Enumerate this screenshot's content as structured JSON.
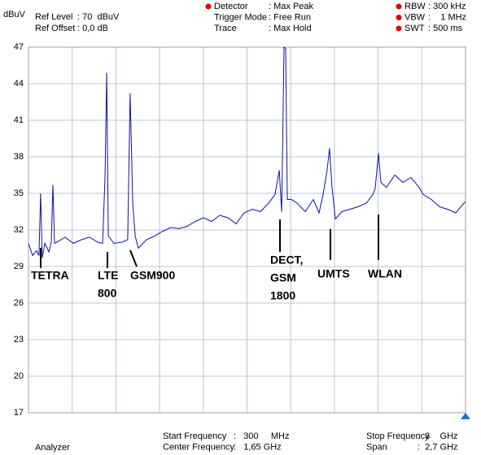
{
  "header": {
    "left": [
      {
        "label": "Ref Level",
        "value": ": 70  dBuV"
      },
      {
        "label": "Ref Offset",
        "value": ": 0,0 dB"
      }
    ],
    "middle": [
      {
        "label": "Detector",
        "value": ": Max Peak"
      },
      {
        "label": "Trigger Mode",
        "value": ": Free Run"
      },
      {
        "label": "Trace",
        "value": ": Max Hold"
      }
    ],
    "right": [
      {
        "label": "RBW",
        "value": ": 300 kHz"
      },
      {
        "label": "VBW",
        "value": ":    1 MHz"
      },
      {
        "label": "SWT",
        "value": ": 500 ms"
      }
    ]
  },
  "footer": {
    "left": [
      {
        "label": "Start Frequency",
        "value": ":   300     MHz"
      },
      {
        "label": "Center Frequency",
        "value": ":   1,65 GHz"
      }
    ],
    "right": [
      {
        "label": "Stop Frequency",
        "value": ":  3    GHz"
      },
      {
        "label": "Span",
        "value": ":  2,7 GHz"
      }
    ],
    "status": "Analyzer"
  },
  "chart_data": {
    "type": "line",
    "y_label": "dBuV",
    "ylim": [
      17,
      47
    ],
    "yticks": [
      17,
      20,
      23,
      26,
      29,
      32,
      35,
      38,
      41,
      44,
      47
    ],
    "xlim": [
      300,
      3000
    ],
    "grid": true,
    "x": [
      300,
      325,
      350,
      365,
      375,
      385,
      401,
      426,
      441,
      451,
      461,
      476,
      526,
      577,
      627,
      677,
      727,
      758,
      773,
      783,
      793,
      828,
      878,
      913,
      928,
      944,
      959,
      979,
      1029,
      1079,
      1130,
      1180,
      1230,
      1280,
      1331,
      1381,
      1431,
      1482,
      1532,
      1582,
      1632,
      1683,
      1733,
      1783,
      1823,
      1849,
      1864,
      1879,
      1889,
      1899,
      1924,
      1959,
      2010,
      2060,
      2095,
      2120,
      2145,
      2160,
      2175,
      2196,
      2236,
      2286,
      2336,
      2387,
      2427,
      2442,
      2462,
      2477,
      2512,
      2563,
      2613,
      2663,
      2713,
      2739,
      2789,
      2839,
      2889,
      2940,
      2990,
      3000
    ],
    "series": [
      {
        "name": "Trace",
        "color": "#1010a8",
        "values": [
          30.9,
          29.9,
          30.3,
          29.9,
          35.0,
          29.7,
          30.9,
          30.2,
          31.0,
          35.7,
          30.9,
          31.0,
          31.4,
          30.9,
          31.2,
          31.4,
          31.0,
          30.9,
          36.5,
          44.9,
          31.5,
          30.9,
          31.0,
          31.2,
          43.2,
          34.2,
          31.5,
          30.5,
          31.2,
          31.5,
          31.9,
          32.2,
          32.1,
          32.3,
          32.7,
          33.0,
          32.7,
          33.2,
          33.0,
          32.5,
          33.4,
          33.7,
          33.5,
          34.2,
          34.9,
          36.9,
          33.5,
          47,
          46.9,
          34.5,
          34.5,
          34.2,
          33.5,
          34.5,
          33.4,
          34.9,
          36.9,
          38.7,
          35.5,
          32.9,
          33.5,
          33.7,
          33.9,
          34.2,
          34.9,
          35.4,
          38.3,
          35.9,
          35.5,
          36.5,
          35.9,
          36.3,
          35.5,
          34.9,
          34.5,
          33.9,
          33.7,
          33.4,
          34.2,
          34.3
        ]
      }
    ],
    "annotations": [
      {
        "lines": [
          "TETRA"
        ]
      },
      {
        "lines": [
          "LTE",
          "800"
        ]
      },
      {
        "lines": [
          "GSM900"
        ]
      },
      {
        "lines": [
          "DECT,",
          "GSM",
          "1800"
        ]
      },
      {
        "lines": [
          "UMTS"
        ]
      },
      {
        "lines": [
          "WLAN"
        ]
      }
    ]
  }
}
